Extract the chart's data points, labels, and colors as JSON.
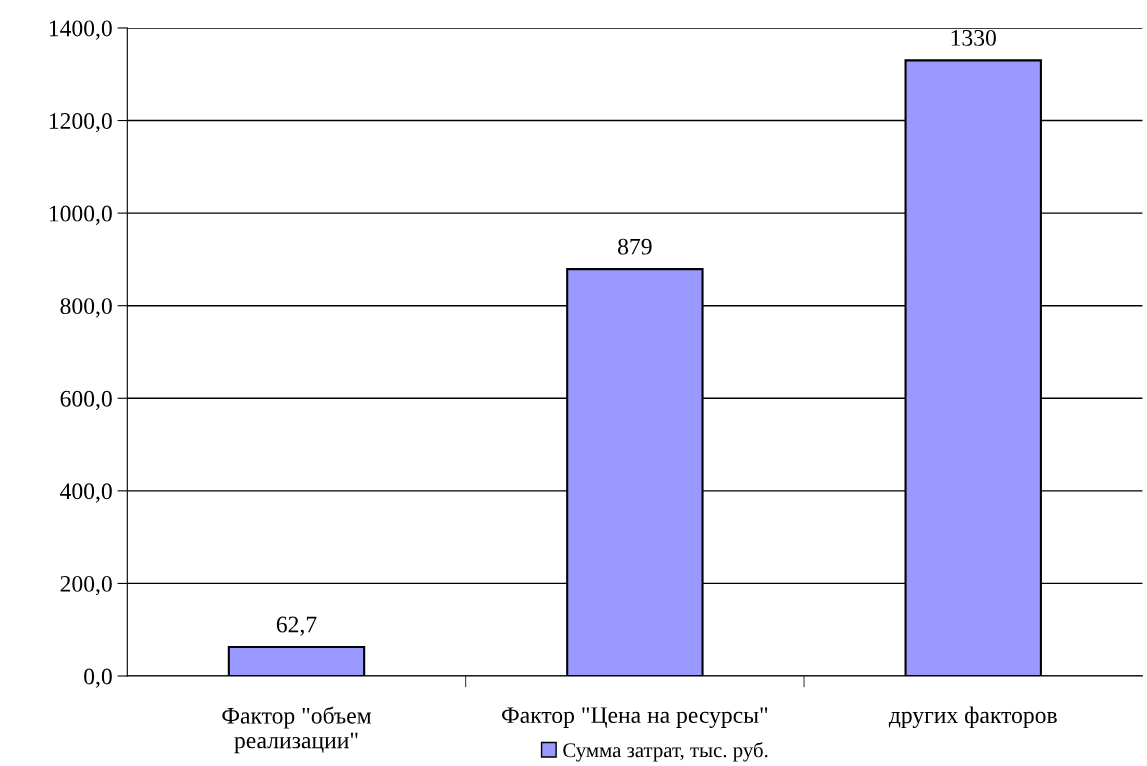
{
  "chart_data": {
    "type": "bar",
    "categories": [
      "Фактор \"объем\nреализации\"",
      "Фактор \"Цена на ресурсы\"",
      "других факторов"
    ],
    "series": [
      {
        "name": "Сумма затрат, тыс. руб.",
        "color": "#9999ff",
        "values": [
          62.7,
          879,
          1330
        ],
        "value_labels": [
          "62,7",
          "879",
          "1330"
        ]
      }
    ],
    "ylim": [
      0,
      1400
    ],
    "yticks": [
      {
        "value": 0,
        "label": "0,0"
      },
      {
        "value": 200,
        "label": "200,0"
      },
      {
        "value": 400,
        "label": "400,0"
      },
      {
        "value": 600,
        "label": "600,0"
      },
      {
        "value": 800,
        "label": "800,0"
      },
      {
        "value": 1000,
        "label": "1000,0"
      },
      {
        "value": 1200,
        "label": "1200,0"
      },
      {
        "value": 1400,
        "label": "1400,0"
      }
    ],
    "grid": "y",
    "legend": "bottom"
  }
}
